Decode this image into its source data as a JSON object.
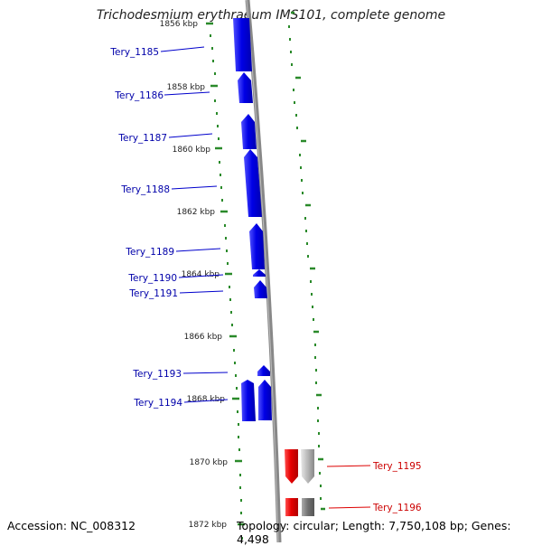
{
  "title": "Trichodesmium erythraeum IMS101, complete genome",
  "footer": {
    "accession": "Accession: NC_008312",
    "topology": "Topology: circular; Length: 7,750,108 bp; Genes: 4,498"
  },
  "colors": {
    "forward_gene": "#0000ee",
    "reverse_gene": "#ee0000",
    "backbone": "#808080",
    "tick": "#2a8a2a"
  },
  "scale": {
    "labels": [
      "1856 kbp",
      "1858 kbp",
      "1860 kbp",
      "1862 kbp",
      "1864 kbp",
      "1866 kbp",
      "1868 kbp",
      "1870 kbp",
      "1872 kbp"
    ]
  },
  "genes": [
    {
      "label": "Tery_1185",
      "strand": "forward"
    },
    {
      "label": "Tery_1186",
      "strand": "forward"
    },
    {
      "label": "Tery_1187",
      "strand": "forward"
    },
    {
      "label": "Tery_1188",
      "strand": "forward"
    },
    {
      "label": "Tery_1189",
      "strand": "forward"
    },
    {
      "label": "Tery_1190",
      "strand": "forward"
    },
    {
      "label": "Tery_1191",
      "strand": "forward"
    },
    {
      "label": "Tery_1193",
      "strand": "forward"
    },
    {
      "label": "Tery_1194",
      "strand": "forward"
    },
    {
      "label": "Tery_1195",
      "strand": "reverse"
    },
    {
      "label": "Tery_1196",
      "strand": "reverse"
    }
  ]
}
